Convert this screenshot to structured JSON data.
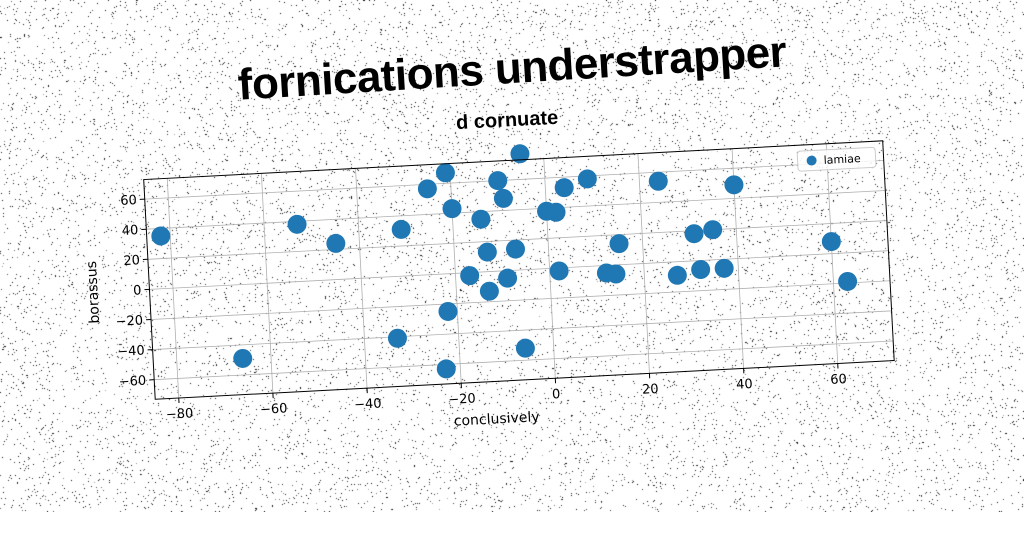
{
  "title": "fornications understrapper",
  "chart_data": {
    "type": "scatter",
    "title": "d cornuate",
    "xlabel": "conclusively",
    "ylabel": "borassus",
    "xlim": [
      -85,
      72
    ],
    "ylim": [
      -73,
      73
    ],
    "xticks": [
      -80,
      -60,
      -40,
      -20,
      0,
      20,
      40,
      60
    ],
    "yticks": [
      -60,
      -40,
      -20,
      0,
      20,
      40,
      60
    ],
    "xtick_labels": [
      "−80",
      "−60",
      "−40",
      "−20",
      "0",
      "20",
      "40",
      "60"
    ],
    "ytick_labels": [
      "−60",
      "−40",
      "−20",
      "0",
      "20",
      "40",
      "60"
    ],
    "grid": true,
    "legend_position": "top-right",
    "series": [
      {
        "name": "lamiae",
        "color": "#1f77b4",
        "points": [
          {
            "x": -82,
            "y": 35
          },
          {
            "x": -53,
            "y": 38
          },
          {
            "x": -45,
            "y": 24
          },
          {
            "x": -31,
            "y": 31
          },
          {
            "x": -25,
            "y": 57
          },
          {
            "x": -21,
            "y": 67
          },
          {
            "x": -20,
            "y": 43
          },
          {
            "x": -5,
            "y": 77
          },
          {
            "x": -10,
            "y": 60
          },
          {
            "x": -9,
            "y": 48
          },
          {
            "x": -14,
            "y": 35
          },
          {
            "x": 0,
            "y": 38
          },
          {
            "x": 2,
            "y": 37
          },
          {
            "x": 4,
            "y": 53
          },
          {
            "x": 9,
            "y": 58
          },
          {
            "x": 24,
            "y": 54
          },
          {
            "x": 40,
            "y": 49
          },
          {
            "x": -13,
            "y": 13
          },
          {
            "x": -7,
            "y": 14
          },
          {
            "x": 15,
            "y": 14
          },
          {
            "x": 31,
            "y": 18
          },
          {
            "x": 35,
            "y": 20
          },
          {
            "x": 60,
            "y": 8
          },
          {
            "x": -17,
            "y": -2
          },
          {
            "x": -9,
            "y": -5
          },
          {
            "x": 2,
            "y": -2
          },
          {
            "x": 12,
            "y": -5
          },
          {
            "x": 14,
            "y": -6
          },
          {
            "x": 27,
            "y": -9
          },
          {
            "x": 32,
            "y": -6
          },
          {
            "x": 37,
            "y": -6
          },
          {
            "x": 63,
            "y": -19
          },
          {
            "x": -13,
            "y": -13
          },
          {
            "x": -22,
            "y": -25
          },
          {
            "x": -33,
            "y": -41
          },
          {
            "x": -66,
            "y": -49
          },
          {
            "x": -6,
            "y": -52
          },
          {
            "x": -23,
            "y": -63
          }
        ]
      }
    ]
  }
}
